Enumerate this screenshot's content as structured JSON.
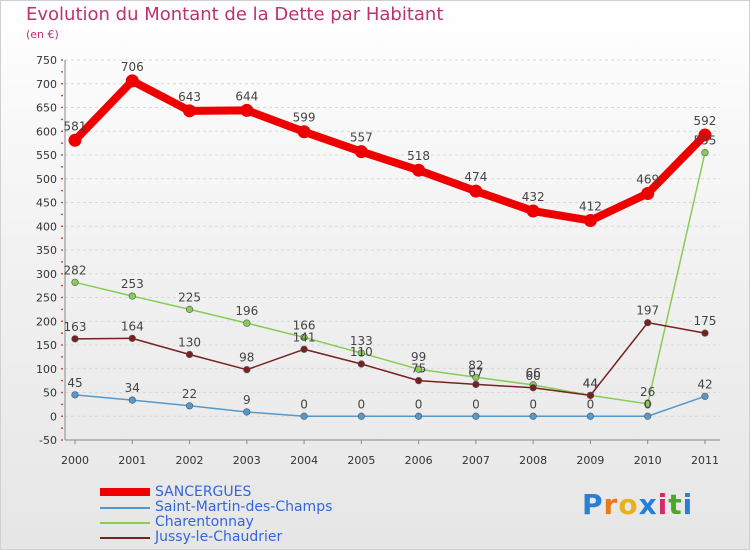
{
  "title": "Evolution du Montant de la Dette par Habitant",
  "subtitle": "(en €)",
  "logo_text": "Proxiti",
  "chart_data": {
    "type": "line",
    "title": "Evolution du Montant de la Dette par Habitant",
    "subtitle": "(en €)",
    "categories": [
      "2000",
      "2001",
      "2002",
      "2003",
      "2004",
      "2005",
      "2006",
      "2007",
      "2008",
      "2009",
      "2010",
      "2011"
    ],
    "ylim": [
      -50,
      750
    ],
    "yticks": [
      -50,
      0,
      50,
      100,
      150,
      200,
      250,
      300,
      350,
      400,
      450,
      500,
      550,
      600,
      650,
      700,
      750
    ],
    "grid": true,
    "legend_position": "bottom-left",
    "series": [
      {
        "name": "SANCERGUES",
        "color": "#ee0000",
        "values": [
          581,
          706,
          643,
          644,
          599,
          557,
          518,
          474,
          432,
          412,
          469,
          592
        ]
      },
      {
        "name": "Saint-Martin-des-Champs",
        "color": "#5599cc",
        "values": [
          45,
          34,
          22,
          9,
          0,
          0,
          0,
          0,
          0,
          0,
          0,
          42
        ]
      },
      {
        "name": "Charentonnay",
        "color": "#88cc55",
        "values": [
          282,
          253,
          225,
          196,
          166,
          133,
          99,
          82,
          66,
          44,
          26,
          555
        ]
      },
      {
        "name": "Jussy-le-Chaudrier",
        "color": "#772222",
        "values": [
          163,
          164,
          130,
          98,
          141,
          110,
          75,
          67,
          60,
          44,
          197,
          175
        ]
      }
    ]
  }
}
